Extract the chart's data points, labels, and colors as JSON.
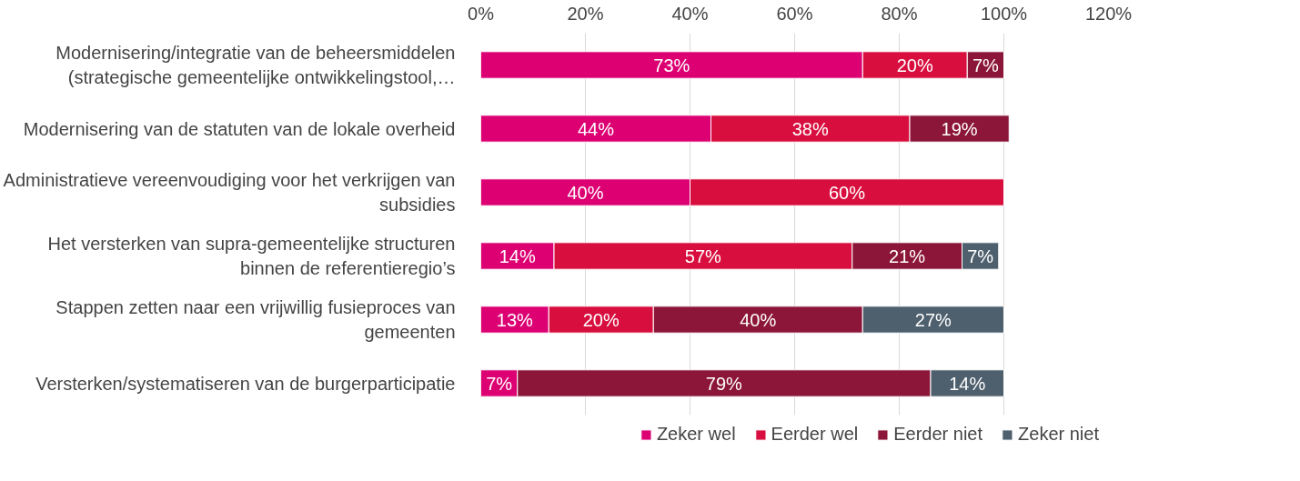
{
  "chart_data": {
    "type": "bar",
    "orientation": "horizontal",
    "stacked": true,
    "categories": [
      "Modernisering/integratie van de beheersmiddelen\n(strategische gemeentelijke ontwikkelingstool,…",
      "Modernisering van de statuten van de lokale overheid",
      "Administratieve vereenvoudiging voor het verkrijgen van\nsubsidies",
      "Het versterken van supra-gemeentelijke structuren\nbinnen de referentieregio’s",
      "Stappen zetten naar een vrijwillig fusieproces van\ngemeenten",
      "Versterken/systematiseren van de burgerparticipatie"
    ],
    "series": [
      {
        "name": "Zeker wel",
        "color": "#dc0073",
        "values": [
          73,
          44,
          40,
          14,
          13,
          7
        ],
        "value_labels": [
          "73%",
          "44%",
          "40%",
          "14%",
          "13%",
          "7%"
        ]
      },
      {
        "name": "Eerder wel",
        "color": "#d80f3e",
        "values": [
          20,
          38,
          60,
          57,
          20,
          null
        ],
        "value_labels": [
          "20%",
          "38%",
          "60%",
          "57%",
          "20%",
          null
        ]
      },
      {
        "name": "Eerder niet",
        "color": "#8c1639",
        "values": [
          7,
          19,
          null,
          21,
          40,
          79
        ],
        "value_labels": [
          "7%",
          "19%",
          null,
          "21%",
          "40%",
          "79%"
        ]
      },
      {
        "name": "Zeker niet",
        "color": "#4e5f6d",
        "values": [
          null,
          null,
          null,
          7,
          27,
          14
        ],
        "value_labels": [
          null,
          null,
          null,
          "7%",
          "27%",
          "14%"
        ]
      }
    ],
    "xlim": [
      0,
      120
    ],
    "xticks": [
      {
        "value": 0,
        "label": "0%"
      },
      {
        "value": 20,
        "label": "20%"
      },
      {
        "value": 40,
        "label": "40%"
      },
      {
        "value": 60,
        "label": "60%"
      },
      {
        "value": 80,
        "label": "80%"
      },
      {
        "value": 100,
        "label": "100%"
      },
      {
        "value": 120,
        "label": "120%"
      }
    ],
    "grid": "x",
    "legend": "bottom"
  }
}
